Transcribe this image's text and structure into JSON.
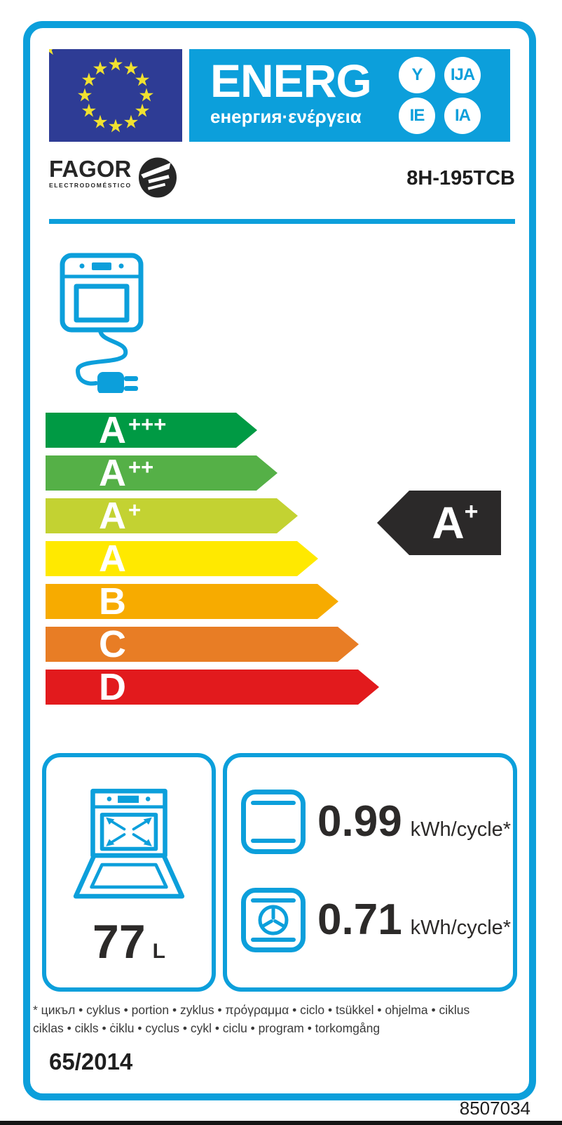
{
  "colors": {
    "cyan": "#0c9fdb",
    "eu_blue": "#2e3c95",
    "star_yellow": "#f0e130",
    "ink": "#2c2a29",
    "black_arrow": "#2b2929"
  },
  "header": {
    "energ_title": "ENERG",
    "energ_subtitle": "енергия·ενέργεια",
    "suffix_circles": [
      "Y",
      "IJA",
      "IE",
      "IA"
    ]
  },
  "brand": {
    "name": "FAGOR",
    "tagline": "ELECTRODOMÉSTICO",
    "model": "8H-195TCB"
  },
  "scale": {
    "grades": [
      {
        "grade": "A",
        "suffix": "+++",
        "color": "#009a44"
      },
      {
        "grade": "A",
        "suffix": "++",
        "color": "#55b047"
      },
      {
        "grade": "A",
        "suffix": "+",
        "color": "#c3d232"
      },
      {
        "grade": "A",
        "suffix": "",
        "color": "#ffe900"
      },
      {
        "grade": "B",
        "suffix": "",
        "color": "#f7ab00"
      },
      {
        "grade": "C",
        "suffix": "",
        "color": "#e87d25"
      },
      {
        "grade": "D",
        "suffix": "",
        "color": "#e21a1d"
      }
    ],
    "rating": {
      "grade": "A",
      "suffix": "+"
    }
  },
  "specs": {
    "volume_value": "77",
    "volume_unit": "L",
    "rows": [
      {
        "icon": "conventional-heating-icon",
        "value": "0.99",
        "unit": "kWh/cycle*"
      },
      {
        "icon": "fan-heating-icon",
        "value": "0.71",
        "unit": "kWh/cycle*"
      }
    ]
  },
  "footnote": {
    "line1": "* цикъл • cyklus • portion • zyklus • πρόγραμμα • ciclo • tsükkel • ohjelma • ciklus",
    "line2": "ciklas • cikls • ċiklu • cyclus • cykl • ciclu • program • torkomgång"
  },
  "regulation": "65/2014",
  "code": "8507034"
}
